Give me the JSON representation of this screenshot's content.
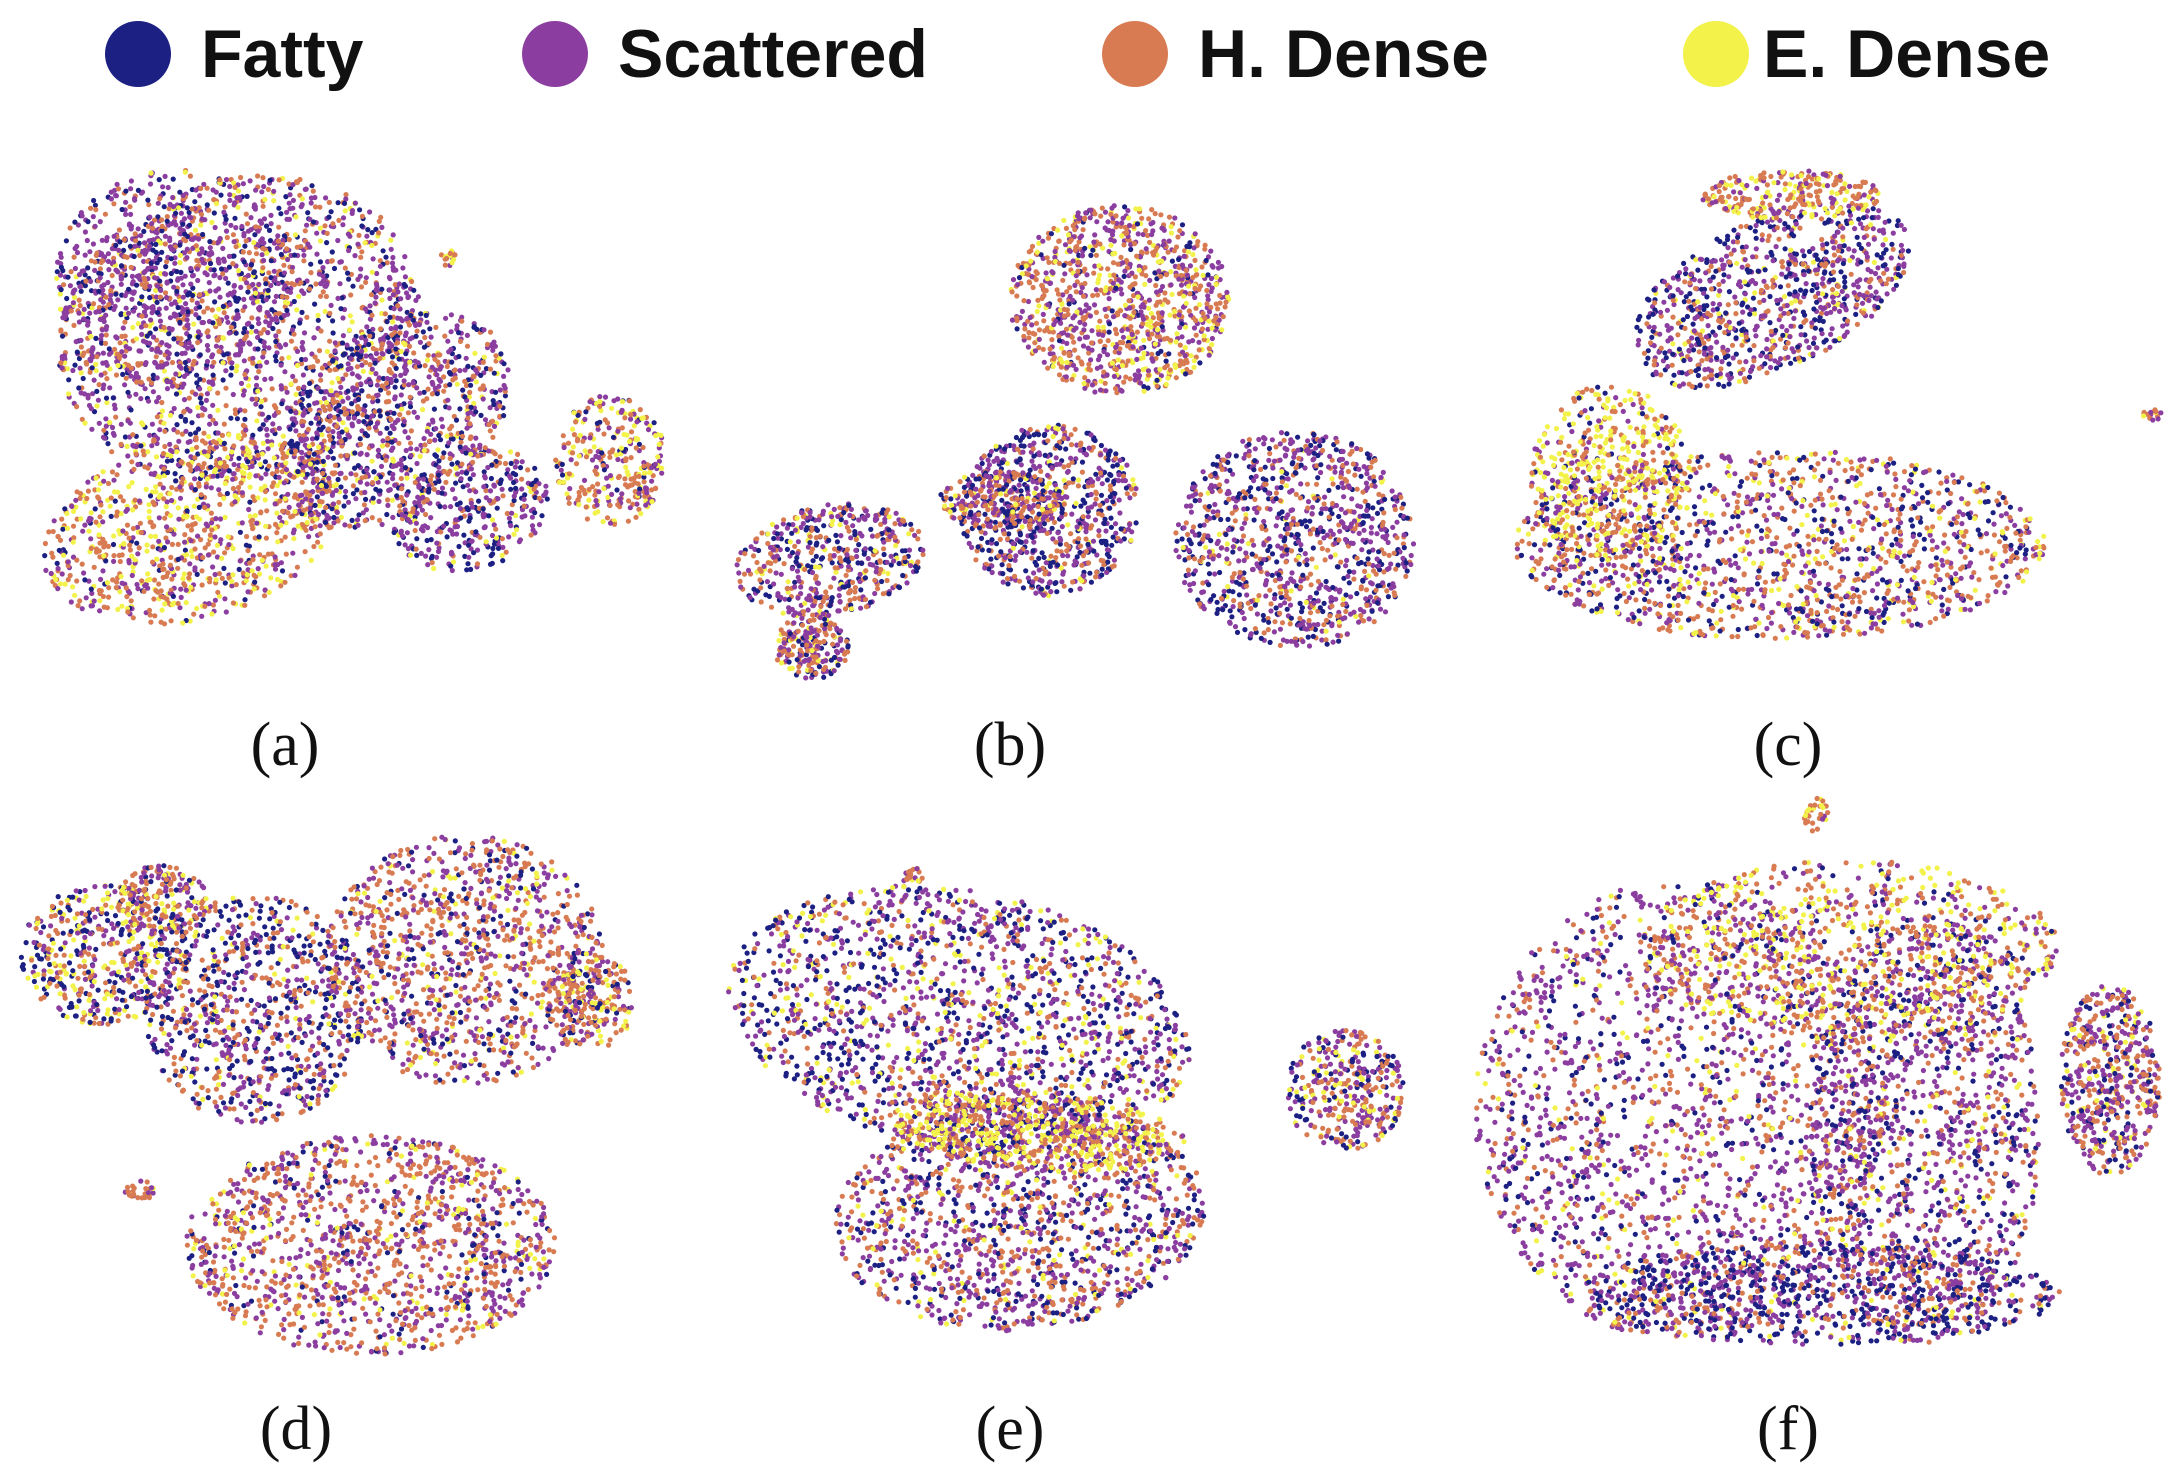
{
  "legend": [
    {
      "label": "Fatty",
      "color": "#1d2083"
    },
    {
      "label": "Scattered",
      "color": "#8b3ea0"
    },
    {
      "label": "H. Dense",
      "color": "#d87b52"
    },
    {
      "label": "E. Dense",
      "color": "#f2f24a"
    }
  ],
  "chart_data": [
    {
      "type": "scatter",
      "panel_label": "(a)",
      "series": [
        {
          "name": "Fatty"
        },
        {
          "name": "Scattered"
        },
        {
          "name": "H. Dense"
        },
        {
          "name": "E. Dense"
        }
      ],
      "grid": false,
      "axes_visible": false,
      "legend_placement": "top"
    },
    {
      "type": "scatter",
      "panel_label": "(b)",
      "series": [
        {
          "name": "Fatty"
        },
        {
          "name": "Scattered"
        },
        {
          "name": "H. Dense"
        },
        {
          "name": "E. Dense"
        }
      ],
      "grid": false,
      "axes_visible": false,
      "legend_placement": "top"
    },
    {
      "type": "scatter",
      "panel_label": "(c)",
      "series": [
        {
          "name": "Fatty"
        },
        {
          "name": "Scattered"
        },
        {
          "name": "H. Dense"
        },
        {
          "name": "E. Dense"
        }
      ],
      "grid": false,
      "axes_visible": false,
      "legend_placement": "top"
    },
    {
      "type": "scatter",
      "panel_label": "(d)",
      "series": [
        {
          "name": "Fatty"
        },
        {
          "name": "Scattered"
        },
        {
          "name": "H. Dense"
        },
        {
          "name": "E. Dense"
        }
      ],
      "grid": false,
      "axes_visible": false,
      "legend_placement": "top"
    },
    {
      "type": "scatter",
      "panel_label": "(e)",
      "series": [
        {
          "name": "Fatty"
        },
        {
          "name": "Scattered"
        },
        {
          "name": "H. Dense"
        },
        {
          "name": "E. Dense"
        }
      ],
      "grid": false,
      "axes_visible": false,
      "legend_placement": "top"
    },
    {
      "type": "scatter",
      "panel_label": "(f)",
      "series": [
        {
          "name": "Fatty"
        },
        {
          "name": "Scattered"
        },
        {
          "name": "H. Dense"
        },
        {
          "name": "E. Dense"
        }
      ],
      "grid": false,
      "axes_visible": false,
      "legend_placement": "top"
    }
  ]
}
